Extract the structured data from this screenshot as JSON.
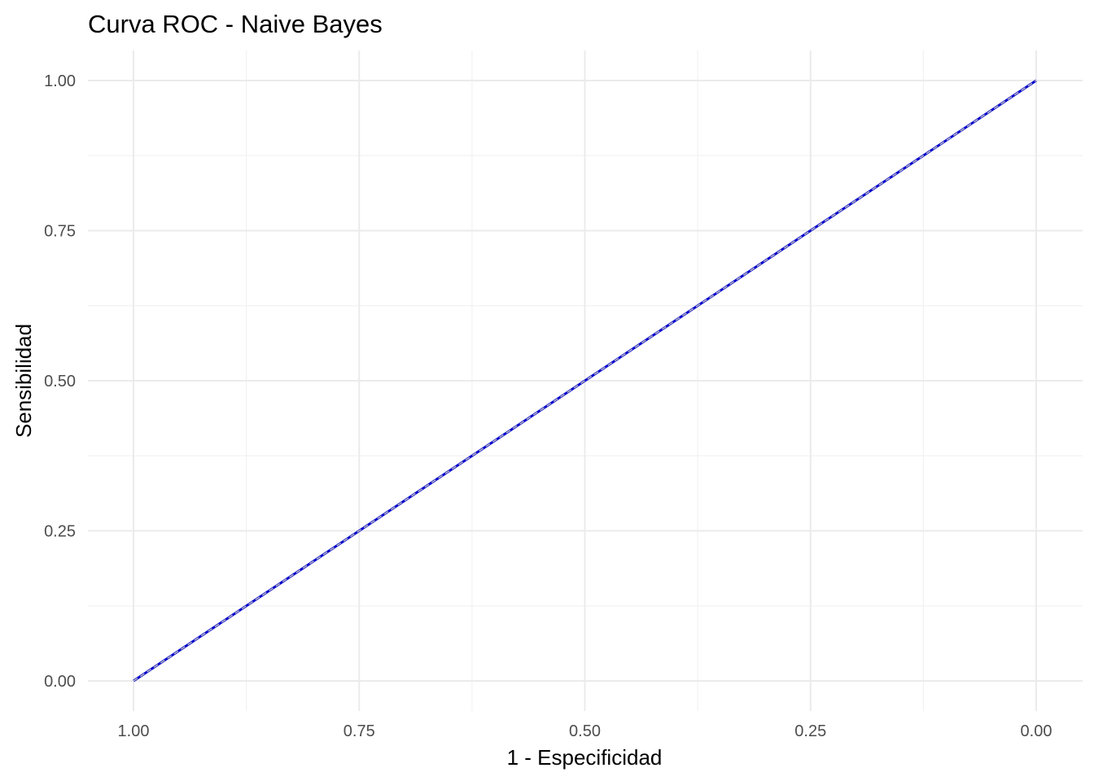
{
  "chart_data": {
    "type": "line",
    "title": "Curva ROC - Naive Bayes",
    "xlabel": "1 - Especificidad",
    "ylabel": "Sensibilidad",
    "x_reversed": true,
    "xlim": [
      1.0,
      0.0
    ],
    "ylim": [
      0.0,
      1.0
    ],
    "x_ticks": [
      "1.00",
      "0.75",
      "0.50",
      "0.25",
      "0.00"
    ],
    "x_tick_values": [
      1.0,
      0.75,
      0.5,
      0.25,
      0.0
    ],
    "y_ticks": [
      "0.00",
      "0.25",
      "0.50",
      "0.75",
      "1.00"
    ],
    "y_tick_values": [
      0.0,
      0.25,
      0.5,
      0.75,
      1.0
    ],
    "grid": true,
    "legend": "none",
    "series": [
      {
        "color": "#0000cc",
        "style": "solid",
        "x": [
          1.0,
          0.0
        ],
        "y": [
          0.0,
          1.0
        ]
      },
      {
        "color": "#bfbfbf",
        "style": "dashed",
        "x": [
          1.0,
          0.0
        ],
        "y": [
          0.0,
          1.0
        ]
      }
    ]
  }
}
